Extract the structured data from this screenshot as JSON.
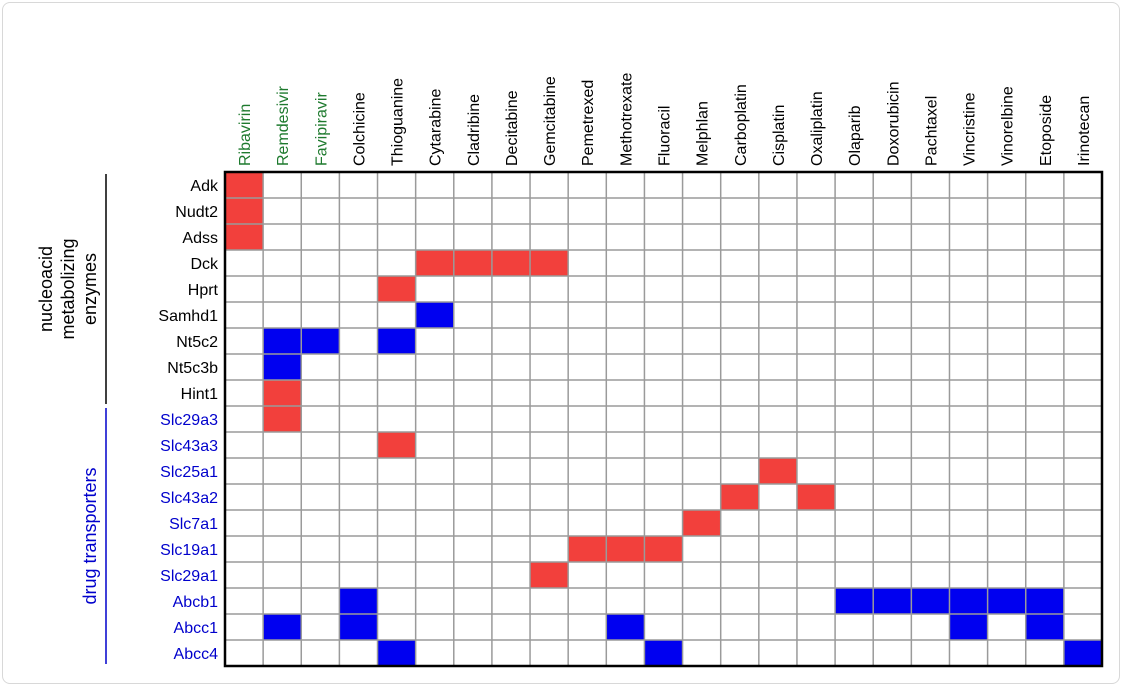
{
  "chart_data": {
    "type": "heatmap",
    "columns": [
      {
        "label": "Ribavirin",
        "color": "#1e7a2e"
      },
      {
        "label": "Remdesivir",
        "color": "#1e7a2e"
      },
      {
        "label": "Favipiravir",
        "color": "#1e7a2e"
      },
      {
        "label": "Colchicine",
        "color": "#000000"
      },
      {
        "label": "Thioguanine",
        "color": "#000000"
      },
      {
        "label": "Cytarabine",
        "color": "#000000"
      },
      {
        "label": "Cladribine",
        "color": "#000000"
      },
      {
        "label": "Decitabine",
        "color": "#000000"
      },
      {
        "label": "Gemcitabine",
        "color": "#000000"
      },
      {
        "label": "Pemetrexed",
        "color": "#000000"
      },
      {
        "label": "Methotrexate",
        "color": "#000000"
      },
      {
        "label": "Fluoracil",
        "color": "#000000"
      },
      {
        "label": "Melphlan",
        "color": "#000000"
      },
      {
        "label": "Carboplatin",
        "color": "#000000"
      },
      {
        "label": "Cisplatin",
        "color": "#000000"
      },
      {
        "label": "Oxaliplatin",
        "color": "#000000"
      },
      {
        "label": "Olaparib",
        "color": "#000000"
      },
      {
        "label": "Doxorubicin",
        "color": "#000000"
      },
      {
        "label": "Pachtaxel",
        "color": "#000000"
      },
      {
        "label": "Vincristine",
        "color": "#000000"
      },
      {
        "label": "Vinorelbine",
        "color": "#000000"
      },
      {
        "label": "Etoposide",
        "color": "#000000"
      },
      {
        "label": "Irinotecan",
        "color": "#000000"
      }
    ],
    "rows": [
      {
        "label": "Adk",
        "group": 0,
        "red": [
          0
        ],
        "blue": []
      },
      {
        "label": "Nudt2",
        "group": 0,
        "red": [
          0
        ],
        "blue": []
      },
      {
        "label": "Adss",
        "group": 0,
        "red": [
          0
        ],
        "blue": []
      },
      {
        "label": "Dck",
        "group": 0,
        "red": [
          5,
          6,
          7,
          8
        ],
        "blue": []
      },
      {
        "label": "Hprt",
        "group": 0,
        "red": [
          4
        ],
        "blue": []
      },
      {
        "label": "Samhd1",
        "group": 0,
        "red": [],
        "blue": [
          5
        ]
      },
      {
        "label": "Nt5c2",
        "group": 0,
        "red": [],
        "blue": [
          1,
          2,
          4
        ]
      },
      {
        "label": "Nt5c3b",
        "group": 0,
        "red": [],
        "blue": [
          1
        ]
      },
      {
        "label": "Hint1",
        "group": 0,
        "red": [
          1
        ],
        "blue": []
      },
      {
        "label": "Slc29a3",
        "group": 1,
        "red": [
          1
        ],
        "blue": []
      },
      {
        "label": "Slc43a3",
        "group": 1,
        "red": [
          4
        ],
        "blue": []
      },
      {
        "label": "Slc25a1",
        "group": 1,
        "red": [
          14
        ],
        "blue": []
      },
      {
        "label": "Slc43a2",
        "group": 1,
        "red": [
          13,
          15
        ],
        "blue": []
      },
      {
        "label": "Slc7a1",
        "group": 1,
        "red": [
          12
        ],
        "blue": []
      },
      {
        "label": "Slc19a1",
        "group": 1,
        "red": [
          9,
          10,
          11
        ],
        "blue": []
      },
      {
        "label": "Slc29a1",
        "group": 1,
        "red": [
          8
        ],
        "blue": []
      },
      {
        "label": "Abcb1",
        "group": 1,
        "red": [],
        "blue": [
          3,
          16,
          17,
          18,
          19,
          20,
          21
        ]
      },
      {
        "label": "Abcc1",
        "group": 1,
        "red": [],
        "blue": [
          1,
          3,
          10,
          19,
          21
        ]
      },
      {
        "label": "Abcc4",
        "group": 1,
        "red": [],
        "blue": [
          4,
          11,
          22
        ]
      }
    ],
    "groups": [
      {
        "label_lines": [
          "nucleoacid",
          "metabolizing",
          "enzymes"
        ],
        "color": "#000000"
      },
      {
        "label_lines": [
          "drug transporters"
        ],
        "color": "#0000cc"
      }
    ],
    "colors": {
      "red": "#f2403c",
      "blue": "#0000f0",
      "grid": "#9a9a9a",
      "border": "#000000"
    },
    "grid": true
  }
}
